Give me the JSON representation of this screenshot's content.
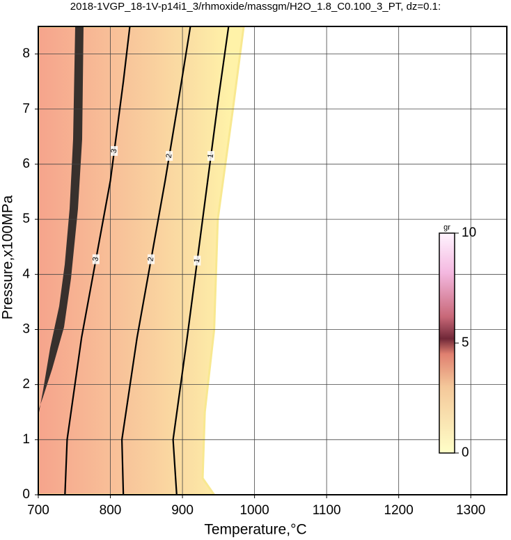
{
  "chart_data": {
    "type": "contour",
    "title": "2018-1VGP_18-1V-p14i1_3/rhmoxide/massgm/H2O_1.8_C0.100_3_PT, dz=0.1:",
    "x_label": "Temperature,°C",
    "y_label": "Pressure,x100MPa",
    "xlim": [
      700,
      1350
    ],
    "ylim": [
      0,
      8.5
    ],
    "xticks": [
      700,
      800,
      900,
      1000,
      1100,
      1200,
      1300
    ],
    "yticks": [
      0,
      1,
      2,
      3,
      4,
      5,
      6,
      7,
      8
    ],
    "grid": true,
    "domain": {
      "x": [
        700,
        944,
        928,
        931,
        944,
        949,
        970,
        985,
        700
      ],
      "y": [
        0,
        0,
        0.3,
        1.5,
        3,
        5,
        7,
        8.5,
        8.5
      ]
    },
    "contours": [
      {
        "level": 3,
        "x": [
          737,
          740,
          760,
          800,
          818,
          827
        ],
        "y": [
          0,
          1,
          2.85,
          5.7,
          7.5,
          8.5
        ]
      },
      {
        "level": 2,
        "x": [
          818,
          816,
          837,
          876,
          895,
          911
        ],
        "y": [
          0,
          1,
          2.85,
          5.7,
          7.2,
          8.5
        ]
      },
      {
        "level": 1,
        "x": [
          892,
          887,
          906,
          935,
          950,
          964
        ],
        "y": [
          0,
          1,
          2.8,
          5.7,
          7.2,
          8.5
        ]
      }
    ],
    "colorbar": {
      "label": "gr",
      "lim": [
        0,
        10
      ],
      "ticks": [
        0,
        5,
        10
      ]
    }
  }
}
